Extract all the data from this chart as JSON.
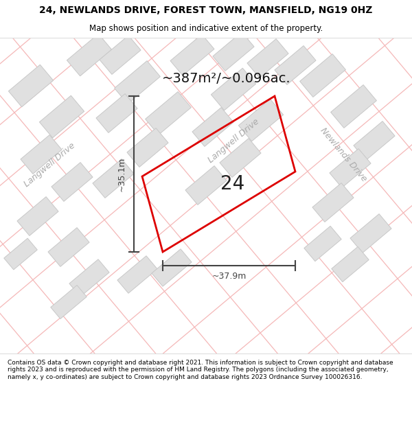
{
  "title": "24, NEWLANDS DRIVE, FOREST TOWN, MANSFIELD, NG19 0HZ",
  "subtitle": "Map shows position and indicative extent of the property.",
  "footer": "Contains OS data © Crown copyright and database right 2021. This information is subject to Crown copyright and database rights 2023 and is reproduced with the permission of HM Land Registry. The polygons (including the associated geometry, namely x, y co-ordinates) are subject to Crown copyright and database rights 2023 Ordnance Survey 100026316.",
  "area_label": "~387m²/~0.096ac.",
  "plot_number": "24",
  "dim_width": "~37.9m",
  "dim_height": "~35.1m",
  "highlight_color": "#dd0000",
  "map_bg": "#ffffff",
  "grid_line_color": "#f5b8b8",
  "building_fill": "#e0e0e0",
  "building_edge": "#c8c8c8",
  "dim_line_color": "#444444",
  "street_label_color": "#aaaaaa",
  "title_fontsize": 10,
  "subtitle_fontsize": 8.5,
  "footer_fontsize": 6.5,
  "area_fontsize": 14,
  "plot_num_fontsize": 20,
  "dim_fontsize": 9,
  "street_fontsize": 9
}
